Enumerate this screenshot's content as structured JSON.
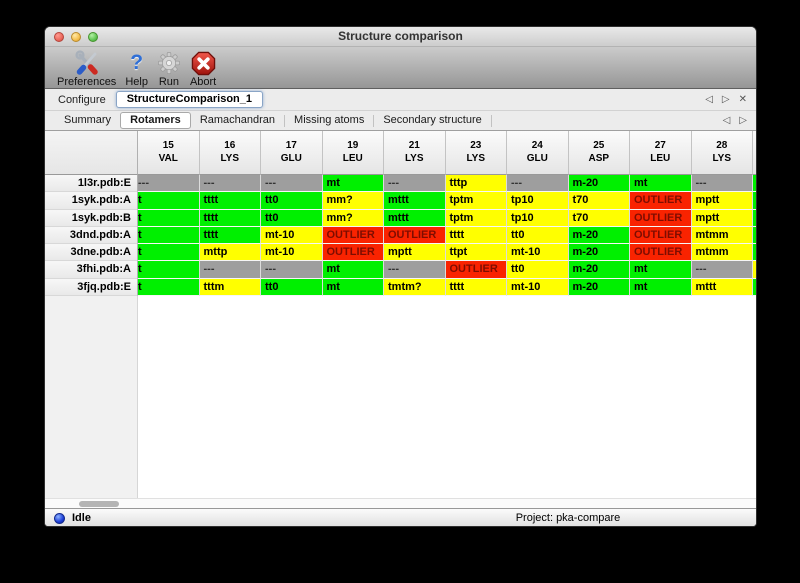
{
  "window": {
    "title": "Structure comparison"
  },
  "toolbar": {
    "items": [
      {
        "label": "Preferences",
        "icon": "tools-icon"
      },
      {
        "label": "Help",
        "icon": "question-mark-icon"
      },
      {
        "label": "Run",
        "icon": "gear-icon"
      },
      {
        "label": "Abort",
        "icon": "stop-x-icon"
      }
    ]
  },
  "configure": {
    "label": "Configure",
    "selected": "StructureComparison_1"
  },
  "tabs": {
    "items": [
      "Summary",
      "Rotamers",
      "Ramachandran",
      "Missing atoms",
      "Secondary structure"
    ],
    "selected": "Rotamers"
  },
  "icons": {
    "prev": "◁",
    "next": "▷",
    "close": "✕"
  },
  "colors": {
    "ok": "#00f000",
    "sub": "#ffff00",
    "outlier": "#f92300",
    "missing": "#9e9e9e",
    "text_ok": "#000000",
    "text_outlier": "#7e0d00",
    "text_missing": "#333333"
  },
  "table": {
    "columns": [
      {
        "num": "15",
        "res": "VAL"
      },
      {
        "num": "16",
        "res": "LYS"
      },
      {
        "num": "17",
        "res": "GLU"
      },
      {
        "num": "19",
        "res": "LEU"
      },
      {
        "num": "21",
        "res": "LYS"
      },
      {
        "num": "23",
        "res": "LYS"
      },
      {
        "num": "24",
        "res": "GLU"
      },
      {
        "num": "25",
        "res": "ASP"
      },
      {
        "num": "27",
        "res": "LEU"
      },
      {
        "num": "28",
        "res": "LYS"
      }
    ],
    "rows": [
      {
        "label": "1l3r.pdb:E",
        "edge": "ok",
        "cells": [
          {
            "t": "---",
            "s": "missing",
            "clip": true
          },
          {
            "t": "---",
            "s": "missing"
          },
          {
            "t": "---",
            "s": "missing"
          },
          {
            "t": "mt",
            "s": "ok"
          },
          {
            "t": "---",
            "s": "missing"
          },
          {
            "t": "tttp",
            "s": "sub"
          },
          {
            "t": "---",
            "s": "missing"
          },
          {
            "t": "m-20",
            "s": "ok"
          },
          {
            "t": "mt",
            "s": "ok"
          },
          {
            "t": "---",
            "s": "missing"
          }
        ]
      },
      {
        "label": "1syk.pdb:A",
        "edge": "ok",
        "cells": [
          {
            "t": "t",
            "s": "ok",
            "clip": true
          },
          {
            "t": "tttt",
            "s": "ok"
          },
          {
            "t": "tt0",
            "s": "ok"
          },
          {
            "t": "mm?",
            "s": "sub"
          },
          {
            "t": "mttt",
            "s": "ok"
          },
          {
            "t": "tptm",
            "s": "sub"
          },
          {
            "t": "tp10",
            "s": "sub"
          },
          {
            "t": "t70",
            "s": "sub"
          },
          {
            "t": "OUTLIER",
            "s": "outlier"
          },
          {
            "t": "mptt",
            "s": "sub"
          }
        ]
      },
      {
        "label": "1syk.pdb:B",
        "edge": "ok",
        "cells": [
          {
            "t": "t",
            "s": "ok",
            "clip": true
          },
          {
            "t": "tttt",
            "s": "ok"
          },
          {
            "t": "tt0",
            "s": "ok"
          },
          {
            "t": "mm?",
            "s": "sub"
          },
          {
            "t": "mttt",
            "s": "ok"
          },
          {
            "t": "tptm",
            "s": "sub"
          },
          {
            "t": "tp10",
            "s": "sub"
          },
          {
            "t": "t70",
            "s": "sub"
          },
          {
            "t": "OUTLIER",
            "s": "outlier"
          },
          {
            "t": "mptt",
            "s": "sub"
          }
        ]
      },
      {
        "label": "3dnd.pdb:A",
        "edge": "ok",
        "cells": [
          {
            "t": "t",
            "s": "ok",
            "clip": true
          },
          {
            "t": "tttt",
            "s": "ok"
          },
          {
            "t": "mt-10",
            "s": "sub"
          },
          {
            "t": "OUTLIER",
            "s": "outlier"
          },
          {
            "t": "OUTLIER",
            "s": "outlier"
          },
          {
            "t": "tttt",
            "s": "sub"
          },
          {
            "t": "tt0",
            "s": "sub"
          },
          {
            "t": "m-20",
            "s": "ok"
          },
          {
            "t": "OUTLIER",
            "s": "outlier"
          },
          {
            "t": "mtmm",
            "s": "sub"
          }
        ]
      },
      {
        "label": "3dne.pdb:A",
        "edge": "ok",
        "cells": [
          {
            "t": "t",
            "s": "ok",
            "clip": true
          },
          {
            "t": "mttp",
            "s": "sub"
          },
          {
            "t": "mt-10",
            "s": "sub"
          },
          {
            "t": "OUTLIER",
            "s": "outlier"
          },
          {
            "t": "mptt",
            "s": "sub"
          },
          {
            "t": "ttpt",
            "s": "sub"
          },
          {
            "t": "mt-10",
            "s": "sub"
          },
          {
            "t": "m-20",
            "s": "ok"
          },
          {
            "t": "OUTLIER",
            "s": "outlier"
          },
          {
            "t": "mtmm",
            "s": "sub"
          }
        ]
      },
      {
        "label": "3fhi.pdb:A",
        "edge": "sub",
        "cells": [
          {
            "t": "t",
            "s": "ok",
            "clip": true
          },
          {
            "t": "---",
            "s": "missing"
          },
          {
            "t": "---",
            "s": "missing"
          },
          {
            "t": "mt",
            "s": "ok"
          },
          {
            "t": "---",
            "s": "missing"
          },
          {
            "t": "OUTLIER",
            "s": "outlier"
          },
          {
            "t": "tt0",
            "s": "sub"
          },
          {
            "t": "m-20",
            "s": "ok"
          },
          {
            "t": "mt",
            "s": "ok"
          },
          {
            "t": "---",
            "s": "missing"
          }
        ]
      },
      {
        "label": "3fjq.pdb:E",
        "edge": "ok",
        "cells": [
          {
            "t": "t",
            "s": "ok",
            "clip": true
          },
          {
            "t": "tttm",
            "s": "sub"
          },
          {
            "t": "tt0",
            "s": "ok"
          },
          {
            "t": "mt",
            "s": "ok"
          },
          {
            "t": "tmtm?",
            "s": "sub"
          },
          {
            "t": "tttt",
            "s": "sub"
          },
          {
            "t": "mt-10",
            "s": "sub"
          },
          {
            "t": "m-20",
            "s": "ok"
          },
          {
            "t": "mt",
            "s": "ok"
          },
          {
            "t": "mttt",
            "s": "sub"
          }
        ]
      }
    ]
  },
  "statusbar": {
    "left": "Idle",
    "right": "Project: pka-compare"
  }
}
